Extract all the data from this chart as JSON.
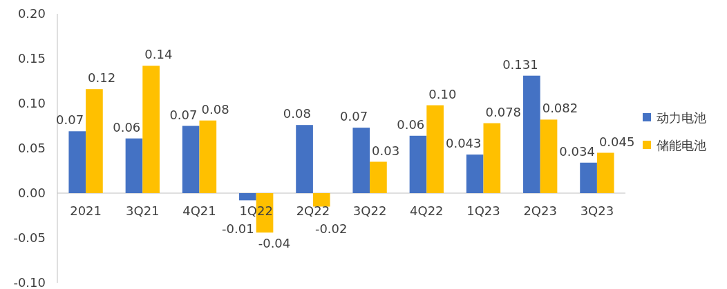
{
  "chart_data": {
    "type": "bar",
    "categories": [
      "2021",
      "3Q21",
      "4Q21",
      "1Q22",
      "2Q22",
      "3Q22",
      "4Q22",
      "1Q23",
      "2Q23",
      "3Q23"
    ],
    "series": [
      {
        "name": "动力电池",
        "color": "#4472c4",
        "values": [
          0.069,
          0.061,
          0.075,
          -0.008,
          0.076,
          0.073,
          0.064,
          0.043,
          0.131,
          0.034
        ],
        "value_labels": [
          "0.07",
          "0.06",
          "0.07",
          "-0.01",
          "0.08",
          "0.07",
          "0.06",
          "0.043",
          "0.131",
          "0.034"
        ]
      },
      {
        "name": "储能电池",
        "color": "#ffc000",
        "values": [
          0.116,
          0.142,
          0.081,
          -0.044,
          -0.015,
          0.035,
          0.098,
          0.078,
          0.082,
          0.045
        ],
        "value_labels": [
          "0.12",
          "0.14",
          "0.08",
          "-0.04",
          "-0.02",
          "0.03",
          "0.10",
          "0.078",
          "0.082",
          "0.045"
        ]
      }
    ],
    "ylim": [
      -0.1,
      0.2
    ],
    "yticks": [
      {
        "value": -0.1,
        "label": "-0.10"
      },
      {
        "value": -0.05,
        "label": "-0.05"
      },
      {
        "value": 0,
        "label": "0.00"
      },
      {
        "value": 0.05,
        "label": "0.05"
      },
      {
        "value": 0.1,
        "label": "0.10"
      },
      {
        "value": 0.15,
        "label": "0.15"
      },
      {
        "value": 0.2,
        "label": "0.20"
      }
    ],
    "legend": "right",
    "grid": false
  }
}
